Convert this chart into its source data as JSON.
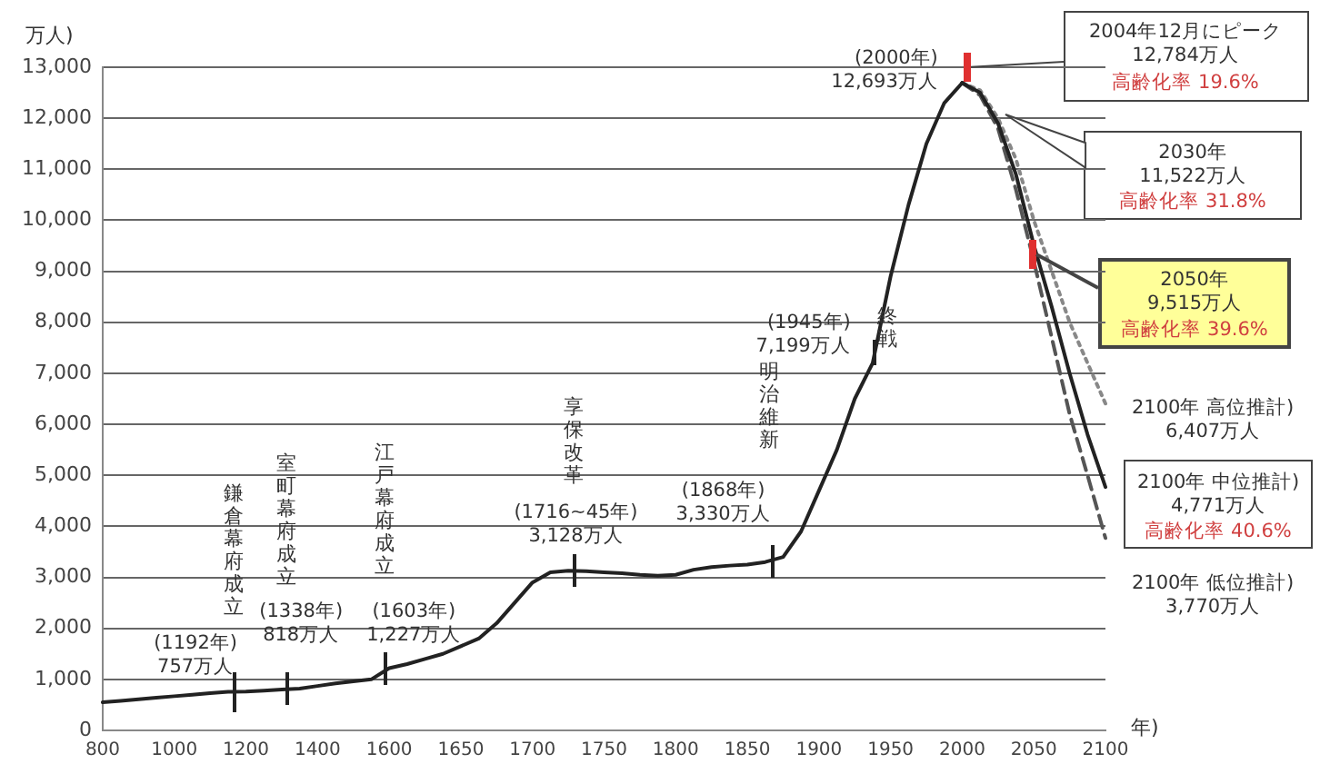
{
  "chart_data": {
    "type": "line",
    "ylabel": "万人)",
    "xlabel": "年)",
    "categories": [
      "800",
      null,
      null,
      null,
      "1000",
      null,
      null,
      null,
      "1200",
      null,
      null,
      null,
      "1400",
      null,
      null,
      null,
      "1600",
      null,
      null,
      null,
      "1650",
      null,
      null,
      null,
      "1700",
      null,
      null,
      null,
      "1750",
      null,
      null,
      null,
      "1800",
      null,
      null,
      null,
      "1850",
      null,
      null,
      null,
      "1900",
      null,
      null,
      null,
      "1950",
      null,
      null,
      null,
      "2000",
      null,
      null,
      null,
      "2050",
      null,
      null,
      null,
      "2100"
    ],
    "series": [
      {
        "color": "#222222",
        "line_style": "solid",
        "values": [
          550,
          580,
          610,
          640,
          670,
          700,
          730,
          757,
          760,
          780,
          800,
          818,
          870,
          920,
          960,
          1000,
          1220,
          1300,
          1400,
          1500,
          1650,
          1800,
          2100,
          2500,
          2900,
          3100,
          3128,
          3120,
          3100,
          3080,
          3050,
          3030,
          3050,
          3150,
          3200,
          3230,
          3250,
          3300,
          3400,
          3900,
          4700,
          5500,
          6500,
          7200,
          8900,
          10300,
          11500,
          12300,
          12693,
          null,
          null,
          null,
          null,
          null,
          null,
          null,
          null
        ]
      },
      {
        "color": "#222222",
        "line_style": "solid",
        "values": [
          null,
          null,
          null,
          null,
          null,
          null,
          null,
          null,
          null,
          null,
          null,
          null,
          null,
          null,
          null,
          null,
          null,
          null,
          null,
          null,
          null,
          null,
          null,
          null,
          null,
          null,
          null,
          null,
          null,
          null,
          null,
          null,
          null,
          null,
          null,
          null,
          null,
          null,
          null,
          null,
          null,
          null,
          null,
          null,
          null,
          null,
          null,
          null,
          12693,
          12500,
          11900,
          10900,
          9515,
          8300,
          7000,
          5800,
          4771
        ]
      },
      {
        "color": "#888888",
        "line_style": "dotted",
        "values": [
          null,
          null,
          null,
          null,
          null,
          null,
          null,
          null,
          null,
          null,
          null,
          null,
          null,
          null,
          null,
          null,
          null,
          null,
          null,
          null,
          null,
          null,
          null,
          null,
          null,
          null,
          null,
          null,
          null,
          null,
          null,
          null,
          null,
          null,
          null,
          null,
          null,
          null,
          null,
          null,
          null,
          null,
          null,
          null,
          null,
          null,
          null,
          null,
          12693,
          12550,
          12000,
          11200,
          10000,
          9000,
          8000,
          7200,
          6407
        ]
      },
      {
        "color": "#555555",
        "line_style": "dashed",
        "values": [
          null,
          null,
          null,
          null,
          null,
          null,
          null,
          null,
          null,
          null,
          null,
          null,
          null,
          null,
          null,
          null,
          null,
          null,
          null,
          null,
          null,
          null,
          null,
          null,
          null,
          null,
          null,
          null,
          null,
          null,
          null,
          null,
          null,
          null,
          null,
          null,
          null,
          null,
          null,
          null,
          null,
          null,
          null,
          null,
          null,
          null,
          null,
          null,
          12693,
          12450,
          11800,
          10600,
          9200,
          7700,
          6200,
          5000,
          3770
        ]
      }
    ],
    "ylim": [
      0,
      13000
    ],
    "yticks": [
      0,
      {
        "value": 1000,
        "label": "1,000"
      },
      {
        "value": 2000,
        "label": "2,000"
      },
      {
        "value": 3000,
        "label": "3,000"
      },
      {
        "value": 4000,
        "label": "4,000"
      },
      {
        "value": 5000,
        "label": "5,000"
      },
      {
        "value": 6000,
        "label": "6,000"
      },
      {
        "value": 7000,
        "label": "7,000"
      },
      {
        "value": 8000,
        "label": "8,000"
      },
      {
        "value": 9000,
        "label": "9,000"
      },
      {
        "value": 10000,
        "label": "10,000"
      },
      {
        "value": 11000,
        "label": "11,000"
      },
      {
        "value": 12000,
        "label": "12,000"
      },
      {
        "value": 13000,
        "label": "13,000"
      }
    ],
    "grid": "y",
    "legend": false,
    "marker": "none",
    "annotations": [
      "鎌倉幕府成立",
      {
        "text": "(1192年)\n757万人",
        "y": 757
      },
      "室町幕府成立",
      {
        "text": "(1338年)\n818万人",
        "y": 818
      },
      "江戸幕府成立",
      {
        "text": "(1603年)\n1,227万人",
        "y": 1227
      },
      "享保改革",
      {
        "text": "(1716~45年)\n3,128万人",
        "y": 3128
      },
      "明治維新",
      {
        "text": "(1868年)\n3,330万人",
        "y": 3330
      },
      "(1945年)\n7,199万人",
      "終戦",
      "(2000年)\n12,693万人",
      "2004年12月にピーク\n12,784万人",
      "高齢化率 19.6%",
      "2030年\n11,522万人",
      "高齢化率 31.8%",
      "2050年\n9,515万人",
      "高齢化率 39.6%",
      "2100年 高位推計)\n6,407万人",
      "2100年 中位推計)\n4,771万人",
      "高齢化率 40.6%",
      "2100年 低位推計)\n3,770万人"
    ]
  }
}
